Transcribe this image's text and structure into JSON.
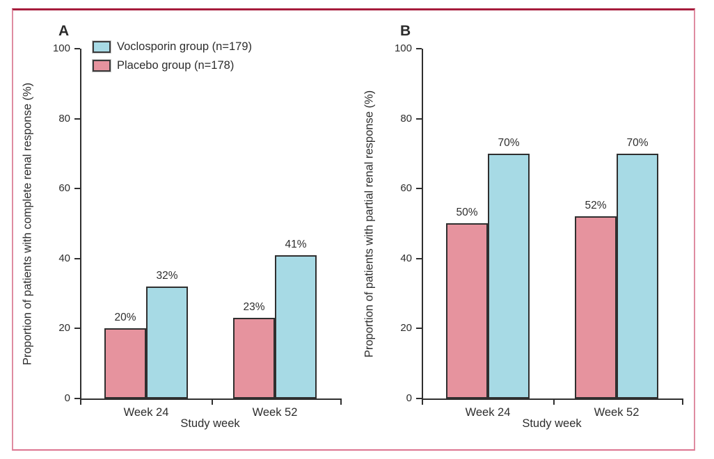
{
  "legend": {
    "items": [
      {
        "label": "Voclosporin group (n=179)",
        "color": "#A7DAE5"
      },
      {
        "label": "Placebo group (n=178)",
        "color": "#E6939E"
      }
    ]
  },
  "colors": {
    "voclosporin_fill": "#A7DAE5",
    "placebo_fill": "#E6939E",
    "bar_outline": "#2F2F2F",
    "axis": "#2F2F2F",
    "text": "#2D2D2D",
    "border_top": "#A61C3C",
    "border_sides": "#DF8CA1"
  },
  "chart_data": [
    {
      "type": "bar",
      "panel_label": "A",
      "categories": [
        "Week 24",
        "Week 52"
      ],
      "series": [
        {
          "name": "Placebo group (n=178)",
          "color": "#E6939E",
          "values": [
            20,
            23
          ],
          "labels": [
            "20%",
            "23%"
          ]
        },
        {
          "name": "Voclosporin group (n=179)",
          "color": "#A7DAE5",
          "values": [
            32,
            41
          ],
          "labels": [
            "32%",
            "41%"
          ]
        }
      ],
      "xlabel": "Study week",
      "ylabel": "Proportion of patients with complete renal response (%)",
      "ylim": [
        0,
        100
      ],
      "yticks": [
        0,
        20,
        40,
        60,
        80,
        100
      ],
      "grid": false,
      "legend_position": "top-left"
    },
    {
      "type": "bar",
      "panel_label": "B",
      "categories": [
        "Week 24",
        "Week 52"
      ],
      "series": [
        {
          "name": "Placebo group (n=178)",
          "color": "#E6939E",
          "values": [
            50,
            52
          ],
          "labels": [
            "50%",
            "52%"
          ]
        },
        {
          "name": "Voclosporin group (n=179)",
          "color": "#A7DAE5",
          "values": [
            70,
            70
          ],
          "labels": [
            "70%",
            "70%"
          ]
        }
      ],
      "xlabel": "Study week",
      "ylabel": "Proportion of patients with partial renal response (%)",
      "ylim": [
        0,
        100
      ],
      "yticks": [
        0,
        20,
        40,
        60,
        80,
        100
      ],
      "grid": false,
      "legend_position": "none"
    }
  ]
}
